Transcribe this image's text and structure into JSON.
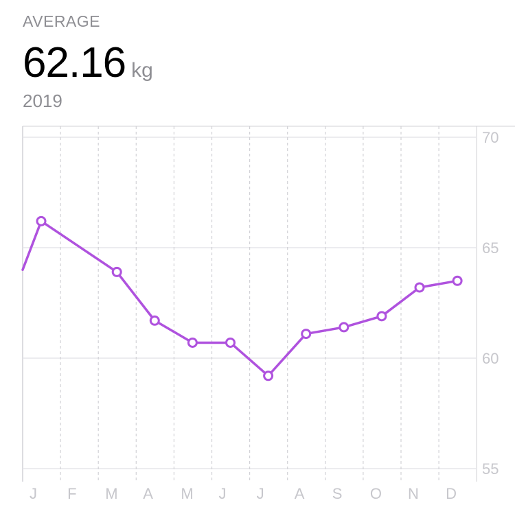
{
  "header": {
    "label": "AVERAGE",
    "value": "62.16",
    "unit": "kg",
    "period": "2019"
  },
  "colors": {
    "series": "#af52de",
    "grid": "#e5e5ea",
    "tick_text": "#c7c7cc",
    "label_text": "#8e8e93"
  },
  "chart_data": {
    "type": "line",
    "categories": [
      "J",
      "F",
      "M",
      "A",
      "M",
      "J",
      "J",
      "A",
      "S",
      "O",
      "N",
      "D"
    ],
    "y_ticks": [
      "70",
      "65",
      "60",
      "55"
    ],
    "ylim": [
      55,
      70
    ],
    "grid": true,
    "series": [
      {
        "values": [
          66.2,
          null,
          63.9,
          61.7,
          60.7,
          60.7,
          59.2,
          61.1,
          61.4,
          61.9,
          63.2,
          63.5
        ]
      }
    ]
  }
}
